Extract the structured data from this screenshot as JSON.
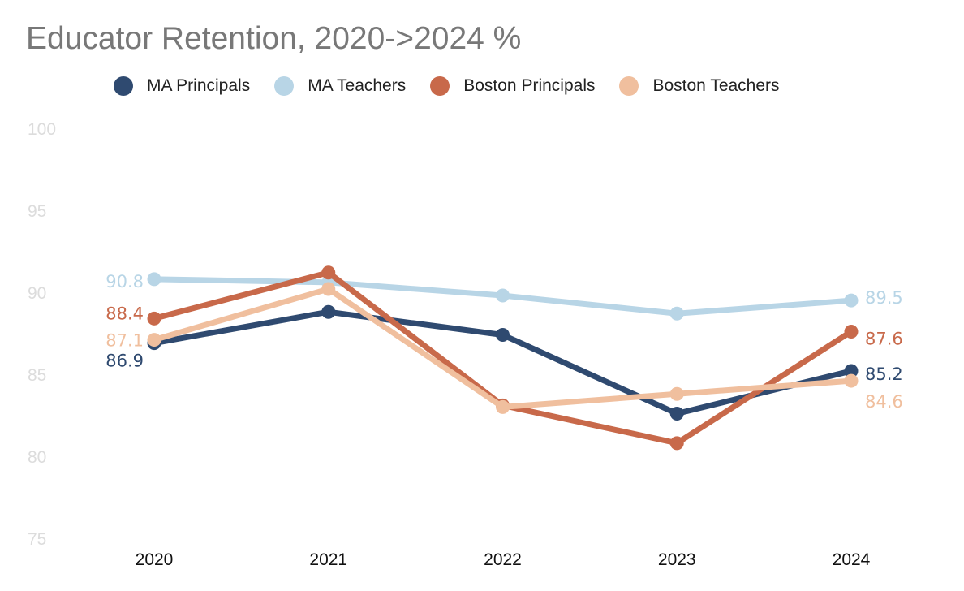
{
  "chart_data": {
    "type": "line",
    "title": "Educator Retention, 2020->2024 %",
    "xlabel": "",
    "ylabel": "",
    "categories": [
      "2020",
      "2021",
      "2022",
      "2023",
      "2024"
    ],
    "ylim": [
      75,
      100
    ],
    "yticks": [
      "75",
      "80",
      "85",
      "90",
      "95",
      "100"
    ],
    "legend_position": "top",
    "grid": false,
    "series": [
      {
        "name": "MA Principals",
        "color": "#2f4a70",
        "values": [
          86.9,
          88.8,
          87.4,
          82.6,
          85.2
        ],
        "labels": [
          "86.9",
          "",
          "",
          "",
          "85.2"
        ]
      },
      {
        "name": "MA Teachers",
        "color": "#b8d5e6",
        "values": [
          90.8,
          90.6,
          89.8,
          88.7,
          89.5
        ],
        "labels": [
          "90.8",
          "",
          "",
          "",
          "89.5"
        ]
      },
      {
        "name": "Boston Principals",
        "color": "#c8694a",
        "values": [
          88.4,
          91.2,
          83.1,
          80.8,
          87.6
        ],
        "labels": [
          "88.4",
          "",
          "",
          "",
          "87.6"
        ]
      },
      {
        "name": "Boston Teachers",
        "color": "#f0bf9e",
        "values": [
          87.1,
          90.2,
          83.0,
          83.8,
          84.6
        ],
        "labels": [
          "87.1",
          "",
          "",
          "",
          "84.6"
        ]
      }
    ]
  }
}
